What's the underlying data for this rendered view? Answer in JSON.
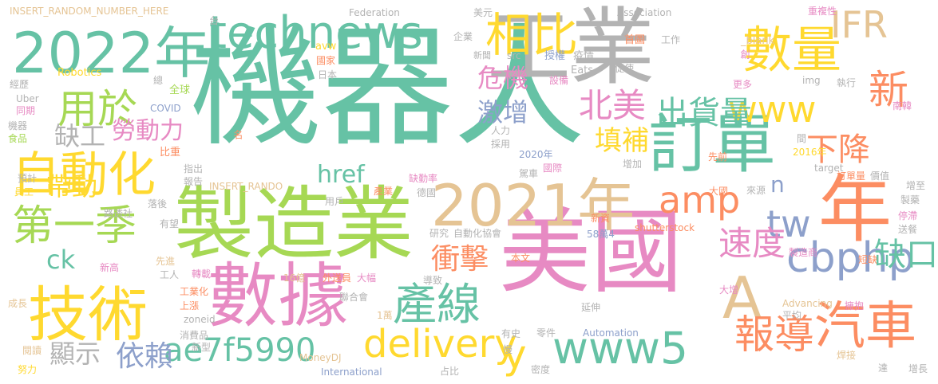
{
  "colors": {
    "green": "#66c2a5",
    "lime": "#a6d854",
    "pink": "#e78ac3",
    "blue": "#8da0cb",
    "orange": "#fc8d62",
    "yellow": "#ffd92f",
    "tan": "#e5c494",
    "grey": "#b3b3b3"
  },
  "words": [
    {
      "text": "機器人",
      "color": "green"
    },
    {
      "text": "工業",
      "color": "grey"
    },
    {
      "text": "美國",
      "color": "pink"
    },
    {
      "text": "製造業",
      "color": "lime"
    },
    {
      "text": "年",
      "color": "orange"
    },
    {
      "text": "數據",
      "color": "pink"
    },
    {
      "text": "2022年",
      "color": "green"
    },
    {
      "text": "technews",
      "color": "green"
    },
    {
      "text": "2021年",
      "color": "tan"
    },
    {
      "text": "技術",
      "color": "yellow"
    },
    {
      "text": "訂單",
      "color": "green"
    },
    {
      "text": "A",
      "color": "tan"
    },
    {
      "text": "自動化",
      "color": "yellow"
    },
    {
      "text": "數量",
      "color": "yellow"
    },
    {
      "text": "相比",
      "color": "yellow"
    },
    {
      "text": "汽車",
      "color": "orange"
    },
    {
      "text": "delivery",
      "color": "yellow"
    },
    {
      "text": "www5",
      "color": "green"
    },
    {
      "text": "cbphp",
      "color": "blue"
    },
    {
      "text": "產線",
      "color": "green"
    },
    {
      "text": "第一季",
      "color": "lime"
    },
    {
      "text": "IFR",
      "color": "tan"
    },
    {
      "text": "www",
      "color": "yellow"
    },
    {
      "text": "新",
      "color": "orange"
    },
    {
      "text": "用於",
      "color": "lime"
    },
    {
      "text": "tw",
      "color": "blue"
    },
    {
      "text": "amp",
      "color": "orange"
    },
    {
      "text": "報導",
      "color": "orange"
    },
    {
      "text": "北美",
      "color": "pink"
    },
    {
      "text": "出貨量",
      "color": "green"
    },
    {
      "text": "下降",
      "color": "orange"
    },
    {
      "text": "速度",
      "color": "pink"
    },
    {
      "text": "缺口",
      "color": "green"
    },
    {
      "text": "ae7f5990",
      "color": "green"
    },
    {
      "text": "衝擊",
      "color": "orange"
    },
    {
      "text": "依賴",
      "color": "blue"
    },
    {
      "text": "危機",
      "color": "pink"
    },
    {
      "text": "激增",
      "color": "blue"
    },
    {
      "text": "填補",
      "color": "yellow"
    },
    {
      "text": "勞動力",
      "color": "pink"
    },
    {
      "text": "缺工",
      "color": "grey"
    },
    {
      "text": "帶動",
      "color": "yellow"
    },
    {
      "text": "href",
      "color": "green"
    },
    {
      "text": "ck",
      "color": "green"
    },
    {
      "text": "顯示",
      "color": "grey"
    },
    {
      "text": "y",
      "color": "yellow"
    },
    {
      "text": "n",
      "color": "blue"
    },
    {
      "text": "INSERT_RANDOM_NUMBER_HERE",
      "color": "tan"
    },
    {
      "text": "Federation",
      "color": "grey"
    },
    {
      "text": "美元",
      "color": "grey"
    },
    {
      "text": "Association",
      "color": "grey"
    },
    {
      "text": "重複性",
      "color": "pink"
    },
    {
      "text": "_blank",
      "color": "tan"
    },
    {
      "text": "台",
      "color": "grey"
    },
    {
      "text": "企業",
      "color": "grey"
    },
    {
      "text": "首圖",
      "color": "orange"
    },
    {
      "text": "工作",
      "color": "grey"
    },
    {
      "text": "avw",
      "color": "yellow"
    },
    {
      "text": "國家",
      "color": "orange"
    },
    {
      "text": "新聞",
      "color": "grey"
    },
    {
      "text": "src",
      "color": "grey"
    },
    {
      "text": "授權",
      "color": "blue"
    },
    {
      "text": "疫情",
      "color": "grey"
    },
    {
      "text": "創",
      "color": "pink"
    },
    {
      "text": "Robotics",
      "color": "yellow"
    },
    {
      "text": "經歷",
      "color": "grey"
    },
    {
      "text": "總",
      "color": "grey"
    },
    {
      "text": "全球",
      "color": "lime"
    },
    {
      "text": "日本",
      "color": "grey"
    },
    {
      "text": "設備",
      "color": "pink"
    },
    {
      "text": "Eats",
      "color": "grey"
    },
    {
      "text": "促使",
      "color": "grey"
    },
    {
      "text": "更多",
      "color": "pink"
    },
    {
      "text": "img",
      "color": "grey"
    },
    {
      "text": "執行",
      "color": "grey"
    },
    {
      "text": "南韓",
      "color": "pink"
    },
    {
      "text": "Uber",
      "color": "grey"
    },
    {
      "text": "同期",
      "color": "pink"
    },
    {
      "text": "COVID",
      "color": "blue"
    },
    {
      "text": "機器",
      "color": "grey"
    },
    {
      "text": "食品",
      "color": "lime"
    },
    {
      "text": "人力",
      "color": "grey"
    },
    {
      "text": "採用",
      "color": "grey"
    },
    {
      "text": "名",
      "color": "orange"
    },
    {
      "text": "間",
      "color": "grey"
    },
    {
      "text": "2016年",
      "color": "yellow"
    },
    {
      "text": "2020年",
      "color": "blue"
    },
    {
      "text": "比重",
      "color": "orange"
    },
    {
      "text": "先前",
      "color": "orange"
    },
    {
      "text": "指出",
      "color": "grey"
    },
    {
      "text": "國際",
      "color": "pink"
    },
    {
      "text": "增加",
      "color": "grey"
    },
    {
      "text": "target",
      "color": "grey"
    },
    {
      "text": "預計",
      "color": "grey"
    },
    {
      "text": "報告",
      "color": "grey"
    },
    {
      "text": "缺勤率",
      "color": "pink"
    },
    {
      "text": "駕車",
      "color": "grey"
    },
    {
      "text": "訂單量",
      "color": "orange"
    },
    {
      "text": "價值",
      "color": "grey"
    },
    {
      "text": "INSERT_RANDO",
      "color": "tan"
    },
    {
      "text": "產業",
      "color": "orange"
    },
    {
      "text": "增至",
      "color": "grey"
    },
    {
      "text": "大國",
      "color": "orange"
    },
    {
      "text": "員工",
      "color": "yellow"
    },
    {
      "text": "落後",
      "color": "grey"
    },
    {
      "text": "用戶",
      "color": "grey"
    },
    {
      "text": "德國",
      "color": "grey"
    },
    {
      "text": "來源",
      "color": "grey"
    },
    {
      "text": "製藥",
      "color": "grey"
    },
    {
      "text": "路透社",
      "color": "grey"
    },
    {
      "text": "新資",
      "color": "orange"
    },
    {
      "text": "停滯",
      "color": "pink"
    },
    {
      "text": "有望",
      "color": "grey"
    },
    {
      "text": "研究",
      "color": "grey"
    },
    {
      "text": "自動化協會",
      "color": "grey"
    },
    {
      "text": "58萬4",
      "color": "blue"
    },
    {
      "text": "shutterstock",
      "color": "orange"
    },
    {
      "text": "送餐",
      "color": "grey"
    },
    {
      "text": "新高",
      "color": "pink"
    },
    {
      "text": "先進",
      "color": "tan"
    },
    {
      "text": "本文",
      "color": "orange"
    },
    {
      "text": "製造商",
      "color": "pink"
    },
    {
      "text": "短缺",
      "color": "orange"
    },
    {
      "text": "工人",
      "color": "grey"
    },
    {
      "text": "轉載",
      "color": "pink"
    },
    {
      "text": "16億",
      "color": "tan"
    },
    {
      "text": "外送員",
      "color": "orange"
    },
    {
      "text": "大幅",
      "color": "pink"
    },
    {
      "text": "導致",
      "color": "grey"
    },
    {
      "text": "大增",
      "color": "pink"
    },
    {
      "text": "工業化",
      "color": "orange"
    },
    {
      "text": "成長",
      "color": "tan"
    },
    {
      "text": "上漲",
      "color": "orange"
    },
    {
      "text": "zoneid",
      "color": "grey"
    },
    {
      "text": "聯合會",
      "color": "grey"
    },
    {
      "text": "Advancing",
      "color": "tan"
    },
    {
      "text": "擁抱",
      "color": "pink"
    },
    {
      "text": "平均",
      "color": "grey"
    },
    {
      "text": "延伸",
      "color": "grey"
    },
    {
      "text": "1萬",
      "color": "tan"
    },
    {
      "text": "消費品",
      "color": "grey"
    },
    {
      "text": "有史",
      "color": "grey"
    },
    {
      "text": "零件",
      "color": "grey"
    },
    {
      "text": "Automation",
      "color": "blue"
    },
    {
      "text": "閱讀",
      "color": "tan"
    },
    {
      "text": "新型",
      "color": "grey"
    },
    {
      "text": "MoneyDJ",
      "color": "tan"
    },
    {
      "text": "慢",
      "color": "grey"
    },
    {
      "text": "密度",
      "color": "grey"
    },
    {
      "text": "焊接",
      "color": "tan"
    },
    {
      "text": "達",
      "color": "grey"
    },
    {
      "text": "努力",
      "color": "yellow"
    },
    {
      "text": "International",
      "color": "blue"
    },
    {
      "text": "占比",
      "color": "grey"
    },
    {
      "text": "增長",
      "color": "grey"
    }
  ]
}
